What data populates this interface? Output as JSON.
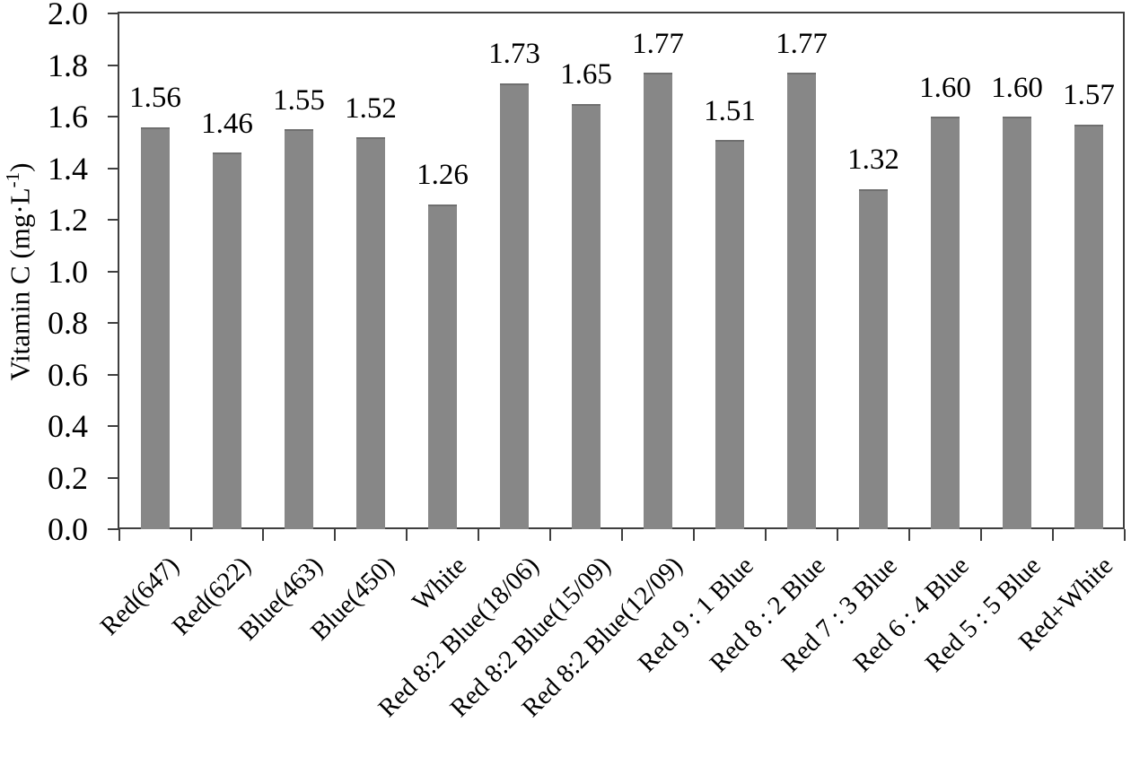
{
  "chart_data": {
    "type": "bar",
    "title": "",
    "xlabel": "",
    "ylabel": "Vitamin C (mg·L-1)",
    "ylabel_parts": {
      "prefix": "Vitamin  C (mg·L",
      "sup": "-1",
      "suffix": ")"
    },
    "categories": [
      "Red(647)",
      "Red(622)",
      "Blue(463)",
      "Blue(450)",
      "White",
      "Red 8:2 Blue(18/06)",
      "Red 8:2 Blue(15/09)",
      "Red 8:2 Blue(12/09)",
      "Red 9 : 1 Blue",
      "Red 8 : 2 Blue",
      "Red 7 : 3 Blue",
      "Red 6 : 4 Blue",
      "Red 5 : 5 Blue",
      "Red+White"
    ],
    "values": [
      1.56,
      1.46,
      1.55,
      1.52,
      1.26,
      1.73,
      1.65,
      1.77,
      1.51,
      1.77,
      1.32,
      1.6,
      1.6,
      1.57
    ],
    "value_labels": [
      "1.56",
      "1.46",
      "1.55",
      "1.52",
      "1.26",
      "1.73",
      "1.65",
      "1.77",
      "1.51",
      "1.77",
      "1.32",
      "1.60",
      "1.60",
      "1.57"
    ],
    "ylim": [
      0.0,
      2.0
    ],
    "ytick_step": 0.2,
    "yticks": [
      "0.0",
      "0.2",
      "0.4",
      "0.6",
      "0.8",
      "1.0",
      "1.2",
      "1.4",
      "1.6",
      "1.8",
      "2.0"
    ],
    "grid": false,
    "legend": null,
    "bar_color": "#878787",
    "axis_color": "#3f3f3f",
    "text_color": "#000000"
  }
}
